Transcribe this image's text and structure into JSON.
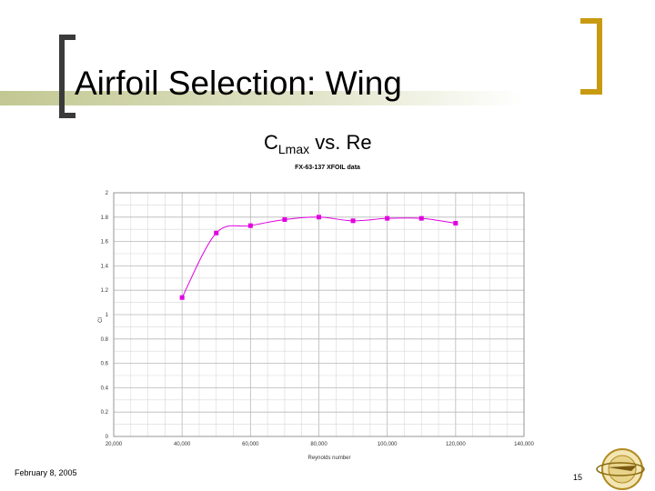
{
  "slide": {
    "title": "Airfoil Selection: Wing",
    "subtitle_main": "C",
    "subtitle_sub": "Lmax",
    "subtitle_rest": " vs. Re",
    "date": "February 8, 2005",
    "page_number": "15"
  },
  "colors": {
    "accent_gold": "#c79a10",
    "olive": "#c2c892",
    "series": "#e000e0"
  },
  "chart_data": {
    "type": "line",
    "title": "FX-63-137 XFOIL data",
    "xlabel": "Reynolds number",
    "ylabel": "Cl",
    "xlim": [
      20000,
      140000
    ],
    "ylim": [
      0,
      2
    ],
    "x_ticks": [
      20000,
      40000,
      60000,
      80000,
      100000,
      120000,
      140000
    ],
    "x_tick_labels": [
      "20,000",
      "40,000",
      "60,000",
      "80,000",
      "100,000",
      "120,000",
      "140,000"
    ],
    "y_ticks": [
      0,
      0.2,
      0.4,
      0.6,
      0.8,
      1,
      1.2,
      1.4,
      1.6,
      1.8,
      2
    ],
    "y_tick_labels": [
      "0",
      "0.2",
      "0.4",
      "0.6",
      "0.8",
      "1",
      "1.2",
      "1.4",
      "1.6",
      "1.8",
      "2"
    ],
    "grid": true,
    "series": [
      {
        "x": [
          40000,
          50000,
          60000,
          70000,
          80000,
          90000,
          100000,
          110000,
          120000
        ],
        "y": [
          1.14,
          1.67,
          1.73,
          1.78,
          1.8,
          1.77,
          1.79,
          1.79,
          1.75
        ]
      }
    ]
  }
}
